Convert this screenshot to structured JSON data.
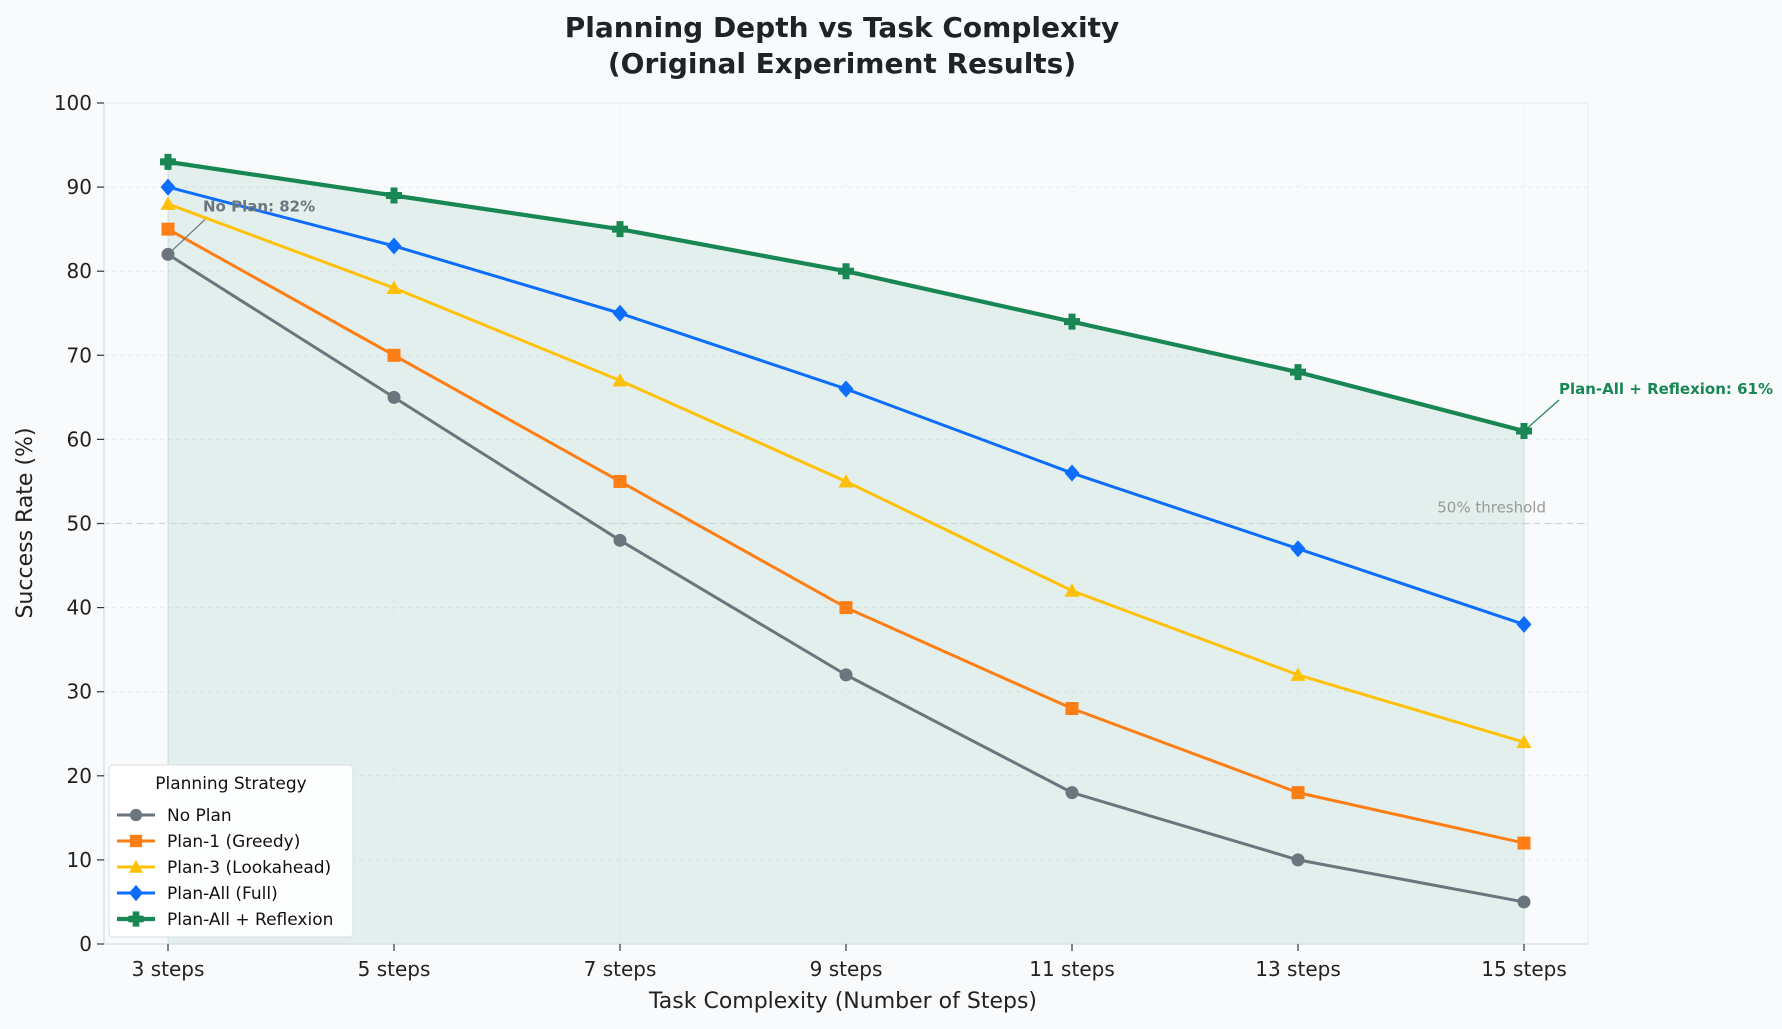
{
  "chart_data": {
    "type": "line",
    "title_line1": "Planning Depth vs Task Complexity",
    "title_line2": "(Original Experiment Results)",
    "xlabel": "Task Complexity (Number of Steps)",
    "ylabel": "Success Rate (%)",
    "categories": [
      "3 steps",
      "5 steps",
      "7 steps",
      "9 steps",
      "11 steps",
      "13 steps",
      "15 steps"
    ],
    "ylim": [
      0,
      100
    ],
    "yticks": [
      0,
      10,
      20,
      30,
      40,
      50,
      60,
      70,
      80,
      90,
      100
    ],
    "grid": true,
    "legend": {
      "title": "Planning Strategy",
      "placement": "lower-left"
    },
    "series": [
      {
        "name": "No Plan",
        "values": [
          82,
          65,
          48,
          32,
          18,
          10,
          5
        ],
        "color": "#6c757d",
        "marker": "circle"
      },
      {
        "name": "Plan-1 (Greedy)",
        "values": [
          85,
          70,
          55,
          40,
          28,
          18,
          12
        ],
        "color": "#fd7e14",
        "marker": "square"
      },
      {
        "name": "Plan-3 (Lookahead)",
        "values": [
          88,
          78,
          67,
          55,
          42,
          32,
          24
        ],
        "color": "#ffc107",
        "marker": "triangle"
      },
      {
        "name": "Plan-All (Full)",
        "values": [
          90,
          83,
          75,
          66,
          56,
          47,
          38
        ],
        "color": "#0d6efd",
        "marker": "diamond"
      },
      {
        "name": "Plan-All + Reflexion",
        "values": [
          93,
          89,
          85,
          80,
          74,
          68,
          61
        ],
        "color": "#198754",
        "marker": "plus"
      }
    ],
    "fill_series": "Plan-All + Reflexion",
    "threshold": {
      "value": 50,
      "label": "50% threshold"
    },
    "annotations": [
      {
        "text": "No Plan: 82%",
        "series": "No Plan",
        "category": "3 steps",
        "color": "#6c757d"
      },
      {
        "text": "Plan-All + Reflexion: 61%",
        "series": "Plan-All + Reflexion",
        "category": "15 steps",
        "color": "#198754"
      }
    ]
  }
}
